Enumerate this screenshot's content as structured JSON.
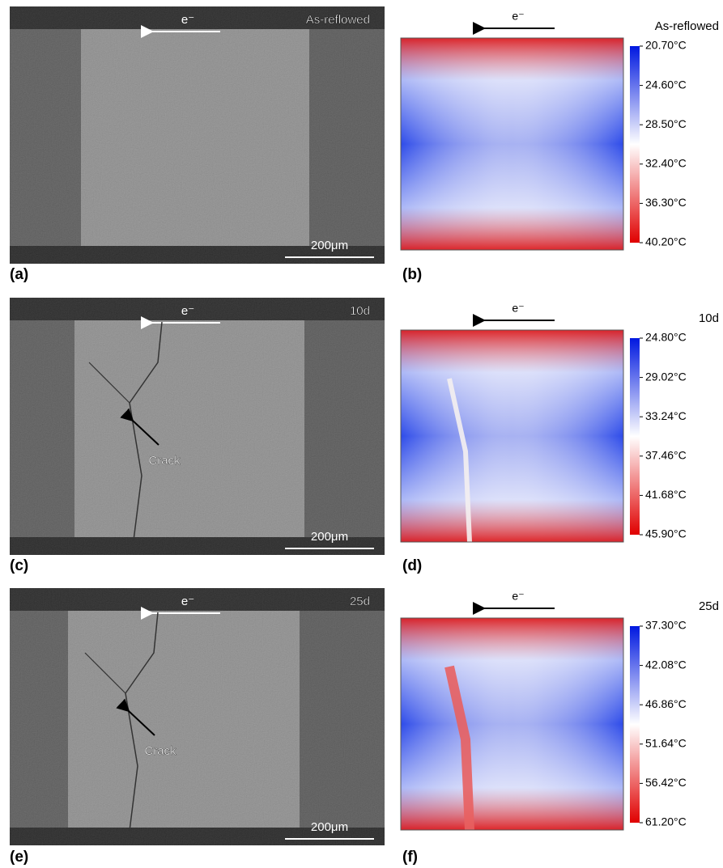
{
  "panels": [
    {
      "label": "(a)",
      "direction": "e⁻",
      "condition": "As-reflowed",
      "scale_bar": "200μm"
    },
    {
      "label": "(b)",
      "direction": "e⁻",
      "condition": "As-reflowed",
      "colorbar_ticks": [
        "20.70°C",
        "24.60°C",
        "28.50°C",
        "32.40°C",
        "36.30°C",
        "40.20°C"
      ]
    },
    {
      "label": "(c)",
      "direction": "e⁻",
      "condition": "10d",
      "scale_bar": "200μm",
      "annotation": "Crack"
    },
    {
      "label": "(d)",
      "direction": "e⁻",
      "condition": "10d",
      "colorbar_ticks": [
        "24.80°C",
        "29.02°C",
        "33.24°C",
        "37.46°C",
        "41.68°C",
        "45.90°C"
      ]
    },
    {
      "label": "(e)",
      "direction": "e⁻",
      "condition": "25d",
      "scale_bar": "200μm",
      "annotation": "Crack"
    },
    {
      "label": "(f)",
      "direction": "e⁻",
      "condition": "25d",
      "colorbar_ticks": [
        "37.30°C",
        "42.08°C",
        "46.86°C",
        "51.64°C",
        "56.42°C",
        "61.20°C"
      ]
    }
  ]
}
